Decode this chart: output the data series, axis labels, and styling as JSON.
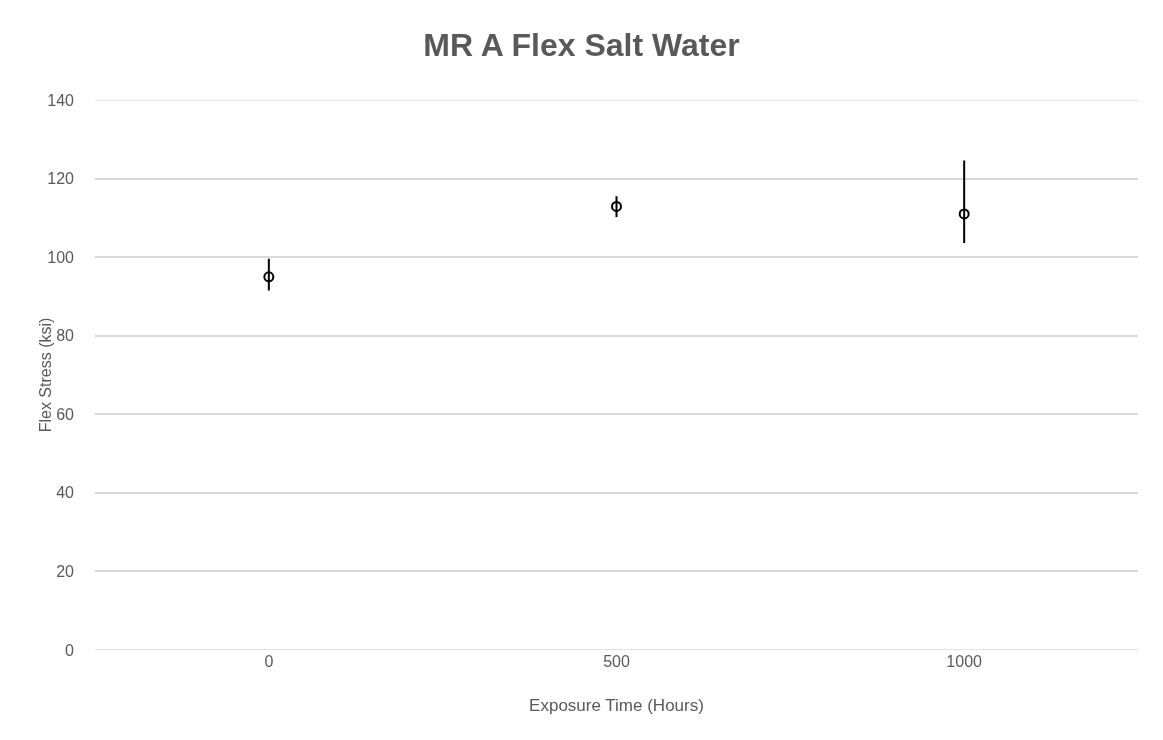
{
  "chart_data": {
    "type": "scatter",
    "title": "MR A Flex Salt Water",
    "xlabel": "Exposure Time (Hours)",
    "ylabel": "Flex Stress (ksi)",
    "categories": [
      "0",
      "500",
      "1000"
    ],
    "series": [
      {
        "color": "#000000",
        "values": [
          95,
          112.9,
          111
        ],
        "errors": [
          [
            91.5,
            99.6
          ],
          [
            110.2,
            115.5
          ],
          [
            103.6,
            124.6
          ]
        ]
      }
    ],
    "ylim": [
      0,
      140
    ],
    "yticks": [
      0,
      20,
      40,
      60,
      80,
      100,
      120,
      140
    ],
    "grid": "y",
    "marker": "circle"
  }
}
